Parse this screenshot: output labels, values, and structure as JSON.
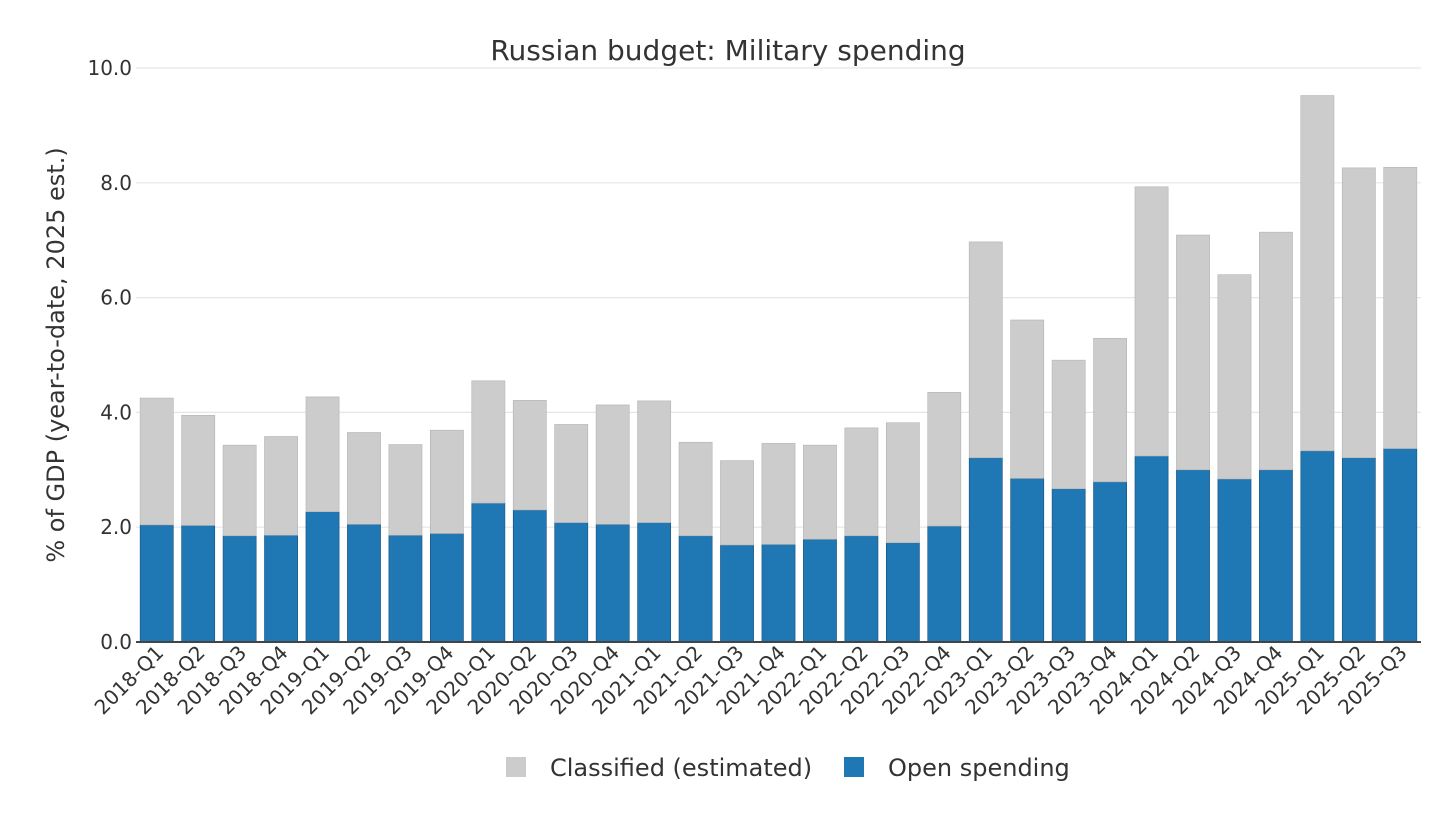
{
  "chart_data": {
    "type": "bar",
    "stacked": true,
    "title": "Russian budget: Military spending",
    "xlabel": "",
    "ylabel": "% of GDP (year-to-date, 2025 est.)",
    "ylim": [
      0,
      10
    ],
    "yticks": [
      "0.0",
      "2.0",
      "4.0",
      "6.0",
      "8.0",
      "10.0"
    ],
    "grid": true,
    "legend_position": "bottom-center",
    "categories": [
      "2018-Q1",
      "2018-Q2",
      "2018-Q3",
      "2018-Q4",
      "2019-Q1",
      "2019-Q2",
      "2019-Q3",
      "2019-Q4",
      "2020-Q1",
      "2020-Q2",
      "2020-Q3",
      "2020-Q4",
      "2021-Q1",
      "2021-Q2",
      "2021-Q3",
      "2021-Q4",
      "2022-Q1",
      "2022-Q2",
      "2022-Q3",
      "2022-Q4",
      "2023-Q1",
      "2023-Q2",
      "2023-Q3",
      "2023-Q4",
      "2024-Q1",
      "2024-Q2",
      "2024-Q3",
      "2024-Q4",
      "2025-Q1",
      "2025-Q2",
      "2025-Q3"
    ],
    "series": [
      {
        "name": "Open spending",
        "color": "#1f77b4",
        "values": [
          2.04,
          2.03,
          1.85,
          1.86,
          2.27,
          2.05,
          1.86,
          1.89,
          2.42,
          2.3,
          2.08,
          2.05,
          2.08,
          1.85,
          1.69,
          1.7,
          1.79,
          1.85,
          1.73,
          2.02,
          3.21,
          2.85,
          2.67,
          2.79,
          3.24,
          3.0,
          2.84,
          3.0,
          3.33,
          3.21,
          3.37
        ]
      },
      {
        "name": "Classified (estimated)",
        "color": "#cccccc",
        "values": [
          2.21,
          1.92,
          1.58,
          1.72,
          2.0,
          1.6,
          1.58,
          1.8,
          2.13,
          1.91,
          1.71,
          2.08,
          2.12,
          1.63,
          1.47,
          1.76,
          1.64,
          1.88,
          2.09,
          2.33,
          3.76,
          2.76,
          2.24,
          2.5,
          4.69,
          4.09,
          3.56,
          4.14,
          6.19,
          5.05,
          4.9
        ]
      }
    ],
    "legend": [
      {
        "label": "Classified (estimated)",
        "color": "#cccccc"
      },
      {
        "label": "Open spending",
        "color": "#1f77b4"
      }
    ]
  }
}
